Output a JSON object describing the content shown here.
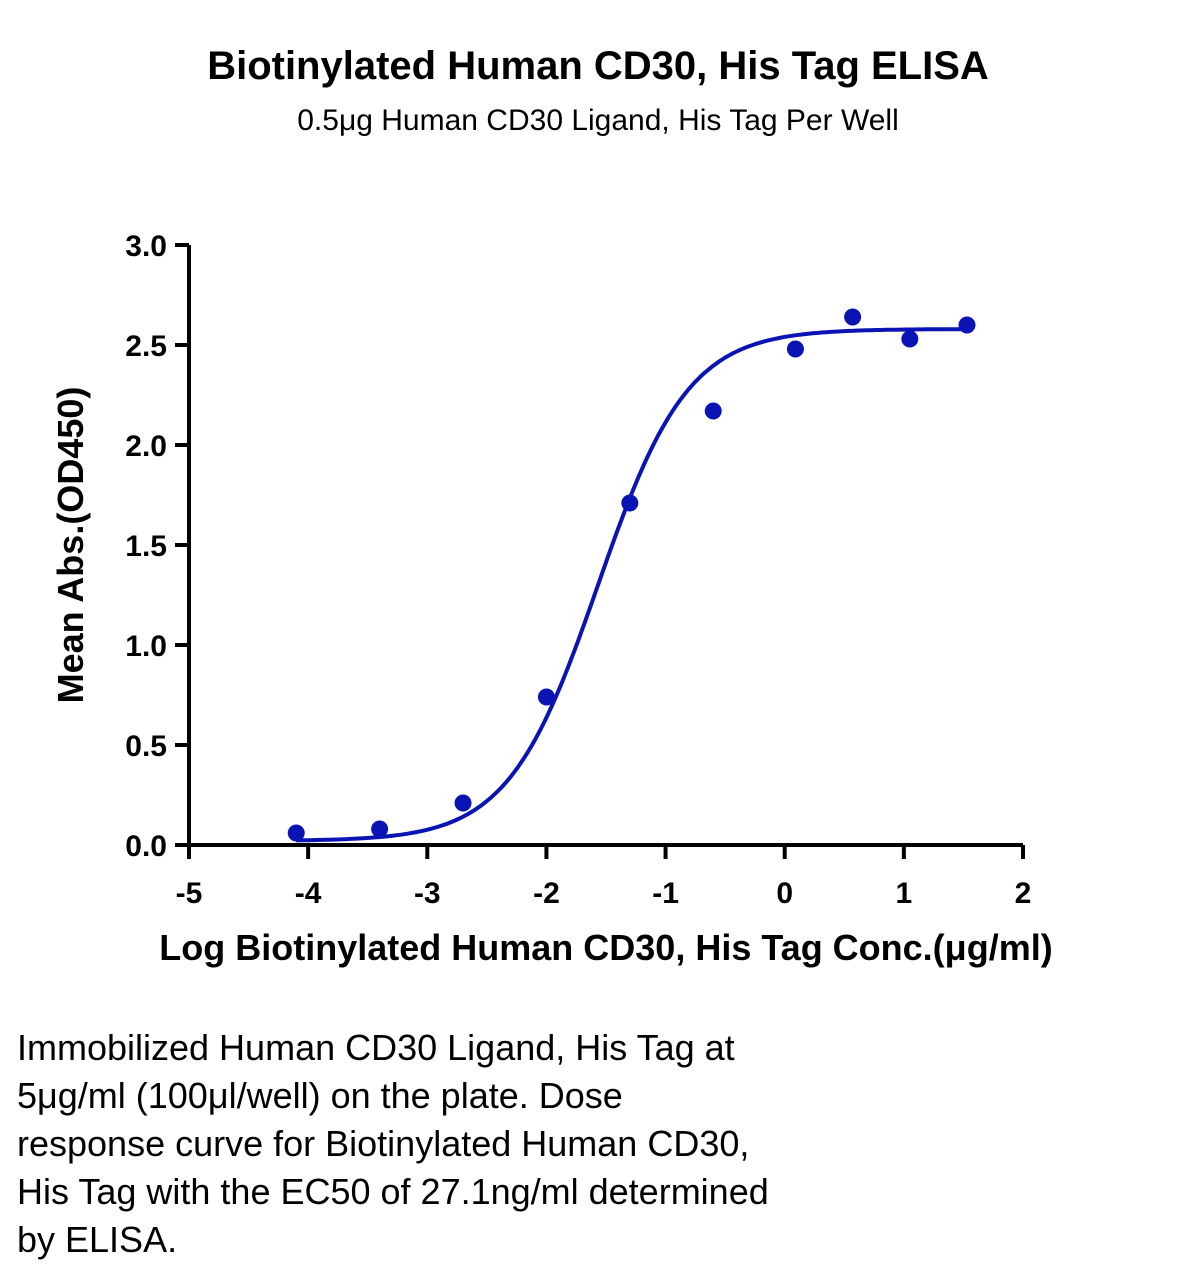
{
  "chart_data": {
    "type": "scatter",
    "title": "Biotinylated Human CD30, His Tag ELISA",
    "subtitle": "0.5μg Human CD30 Ligand, His Tag Per Well",
    "xlabel": "Log Biotinylated Human CD30, His Tag Conc.(μg/ml)",
    "ylabel": "Mean Abs.(OD450)",
    "xlim": [
      -5,
      2
    ],
    "ylim": [
      0,
      3.0
    ],
    "x_ticks": [
      "-5",
      "-4",
      "-3",
      "-2",
      "-1",
      "0",
      "1",
      "2"
    ],
    "y_ticks": [
      "0.0",
      "0.5",
      "1.0",
      "1.5",
      "2.0",
      "2.5",
      "3.0"
    ],
    "series": [
      {
        "x": [
          -4.1,
          -3.4,
          -2.7,
          -2.0,
          -1.3,
          -0.6,
          0.09,
          0.57,
          1.05,
          1.53
        ],
        "y": [
          0.06,
          0.08,
          0.21,
          0.74,
          1.71,
          2.17,
          2.48,
          2.64,
          2.53,
          2.6
        ],
        "color": "#0a14b4",
        "fit": {
          "model": "4PL",
          "bottom": 0.02,
          "top": 2.58,
          "logEC50": -1.567,
          "hill": 1.15,
          "x_range": [
            -4.1,
            1.53
          ]
        }
      }
    ],
    "grid": false,
    "legend": "none"
  },
  "caption": "Immobilized Human CD30 Ligand, His Tag at\n5μg/ml (100μl/well) on the plate. Dose\nresponse curve for Biotinylated Human CD30,\nHis Tag with the EC50 of 27.1ng/ml determined\nby ELISA."
}
